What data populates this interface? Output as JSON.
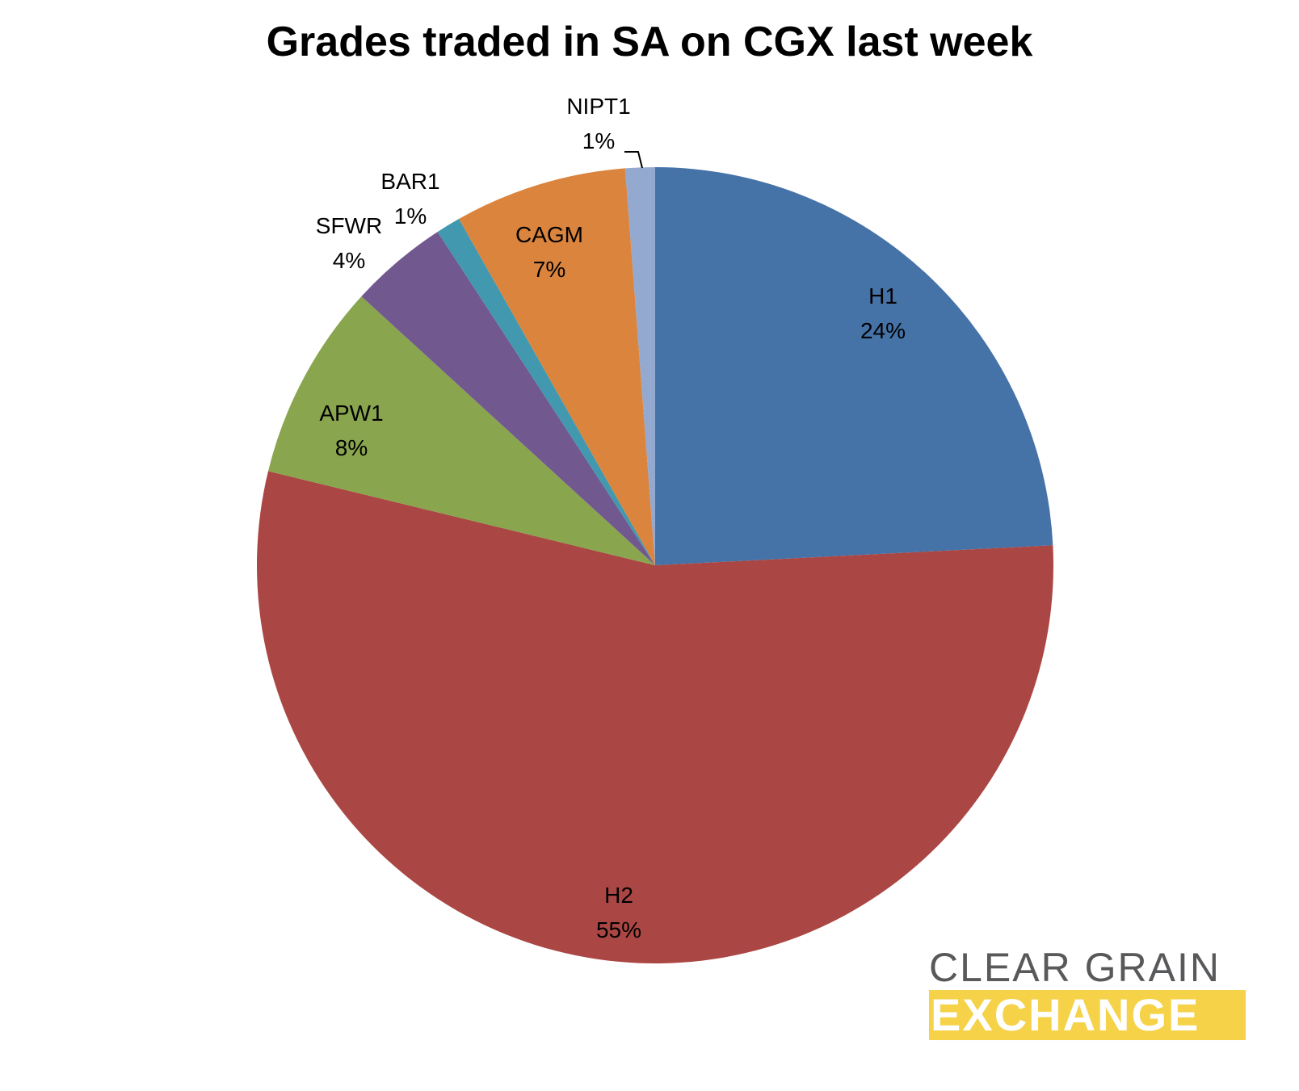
{
  "chart_data": {
    "type": "pie",
    "title": "Grades traded in SA on CGX last week",
    "slices": [
      {
        "label": "H1",
        "pct_label": "24%",
        "value": 24.2,
        "color": "#4572a7"
      },
      {
        "label": "H2",
        "pct_label": "55%",
        "value": 54.6,
        "color": "#aa4643"
      },
      {
        "label": "APW1",
        "pct_label": "8%",
        "value": 8.0,
        "color": "#89a54e"
      },
      {
        "label": "SFWR",
        "pct_label": "4%",
        "value": 4.0,
        "color": "#71588f"
      },
      {
        "label": "BAR1",
        "pct_label": "1%",
        "value": 1.0,
        "color": "#4198af"
      },
      {
        "label": "CAGM",
        "pct_label": "7%",
        "value": 7.0,
        "color": "#db843d"
      },
      {
        "label": "NIPT1",
        "pct_label": "1%",
        "value": 1.2,
        "color": "#93a9cf"
      }
    ]
  },
  "logo": {
    "line1": "CLEAR GRAIN",
    "line2": "EXCHANGE",
    "accent_color": "#f6d248",
    "text_color": "#58595b"
  }
}
